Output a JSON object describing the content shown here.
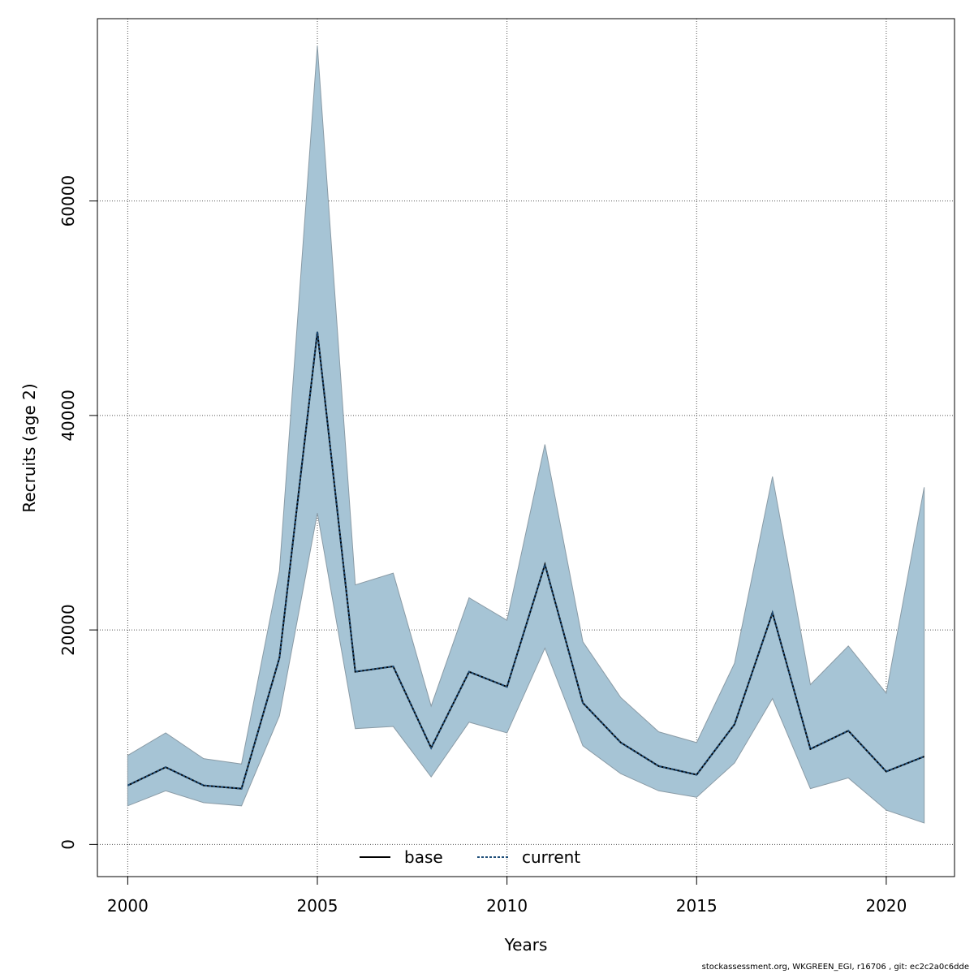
{
  "chart_data": {
    "type": "area",
    "xlabel": "Years",
    "ylabel": "Recruits (age 2)",
    "xlim": [
      1999.2,
      2021.8
    ],
    "ylim": [
      -3000,
      77000
    ],
    "x_ticks": [
      2000,
      2005,
      2010,
      2015,
      2020
    ],
    "y_ticks": [
      0,
      20000,
      40000,
      60000
    ],
    "grid": true,
    "grid_style": "dotted",
    "legend_position": "bottom",
    "x": [
      2000,
      2001,
      2002,
      2003,
      2004,
      2005,
      2006,
      2007,
      2008,
      2009,
      2010,
      2011,
      2012,
      2013,
      2014,
      2015,
      2016,
      2017,
      2018,
      2019,
      2020,
      2021
    ],
    "band": {
      "color": "#a6c4d5",
      "lower": [
        3600,
        5000,
        3900,
        3600,
        12000,
        30900,
        10800,
        11000,
        6300,
        11400,
        10400,
        18300,
        9200,
        6600,
        5000,
        4400,
        7600,
        13600,
        5200,
        6200,
        3200,
        2000
      ],
      "upper": [
        8300,
        10400,
        8000,
        7500,
        25500,
        74500,
        24200,
        25300,
        12900,
        23000,
        20900,
        37300,
        18900,
        13700,
        10500,
        9500,
        16900,
        34300,
        14900,
        18500,
        14100,
        33300
      ]
    },
    "series": [
      {
        "name": "base",
        "style": "solid",
        "color": "#000000",
        "values": [
          5500,
          7200,
          5500,
          5200,
          17400,
          47800,
          16100,
          16600,
          9000,
          16100,
          14700,
          26100,
          13200,
          9500,
          7300,
          6500,
          11200,
          21600,
          8900,
          10600,
          6800,
          8200
        ]
      },
      {
        "name": "current",
        "style": "dotted",
        "color": "#1f4e79",
        "values": [
          5500,
          7200,
          5500,
          5200,
          17400,
          47800,
          16100,
          16600,
          9000,
          16100,
          14700,
          26100,
          13200,
          9500,
          7300,
          6500,
          11200,
          21600,
          8900,
          10600,
          6800,
          8200
        ]
      }
    ]
  },
  "footer": "stockassessment.org, WKGREEN_EGI, r16706 , git: ec2c2a0c6dde"
}
